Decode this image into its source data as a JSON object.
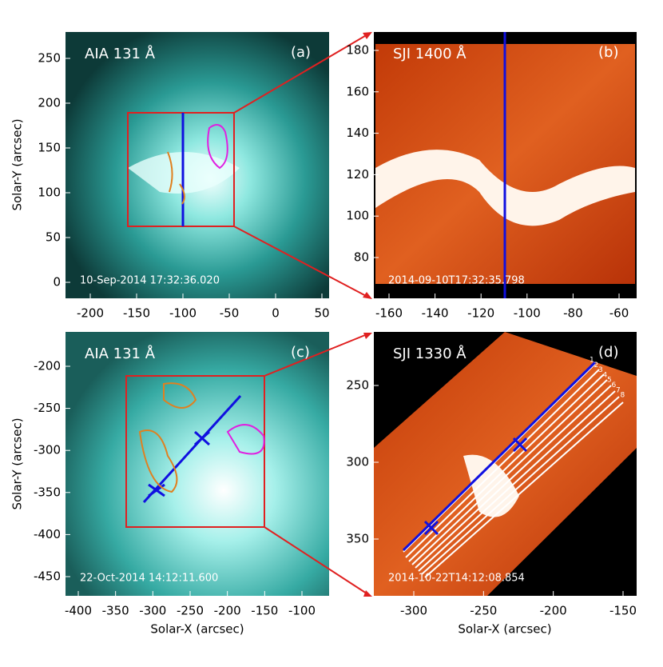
{
  "panels": [
    {
      "title": "AIA 131 Å",
      "label": "(a)",
      "timestamp": "10-Sep-2014 17:32:36.020",
      "xticks": [
        -200,
        -150,
        -100,
        -50,
        0,
        50
      ],
      "yticks": [
        250,
        200,
        150,
        100,
        50,
        0
      ],
      "ylabel": "Solar-Y (arcsec)"
    },
    {
      "title": "SJI 1400 Å",
      "label": "(b)",
      "timestamp": "2014-09-10T17:32:35.798",
      "xticks": [
        -160,
        -140,
        -120,
        -100,
        -80,
        -60
      ],
      "yticks": [
        180,
        160,
        140,
        120,
        100,
        80
      ]
    },
    {
      "title": "AIA 131 Å",
      "label": "(c)",
      "timestamp": "22-Oct-2014 14:12:11.600",
      "xticks": [
        -400,
        -350,
        -300,
        -250,
        -200,
        -150,
        -100
      ],
      "yticks": [
        -200,
        -250,
        -300,
        -350,
        -400,
        -450
      ],
      "xlabel": "Solar-X (arcsec)",
      "ylabel": "Solar-Y (arcsec)"
    },
    {
      "title": "SJI 1330 Å",
      "label": "(d)",
      "timestamp": "2014-10-22T14:12:08.854",
      "xticks": [
        -300,
        -250,
        -200,
        -150
      ],
      "yticks": [
        250,
        300,
        350
      ],
      "xlabel": "Solar-X (arcsec)",
      "slit_labels": [
        "1",
        "2",
        "3",
        "4",
        "5",
        "6",
        "7",
        "8"
      ]
    }
  ]
}
